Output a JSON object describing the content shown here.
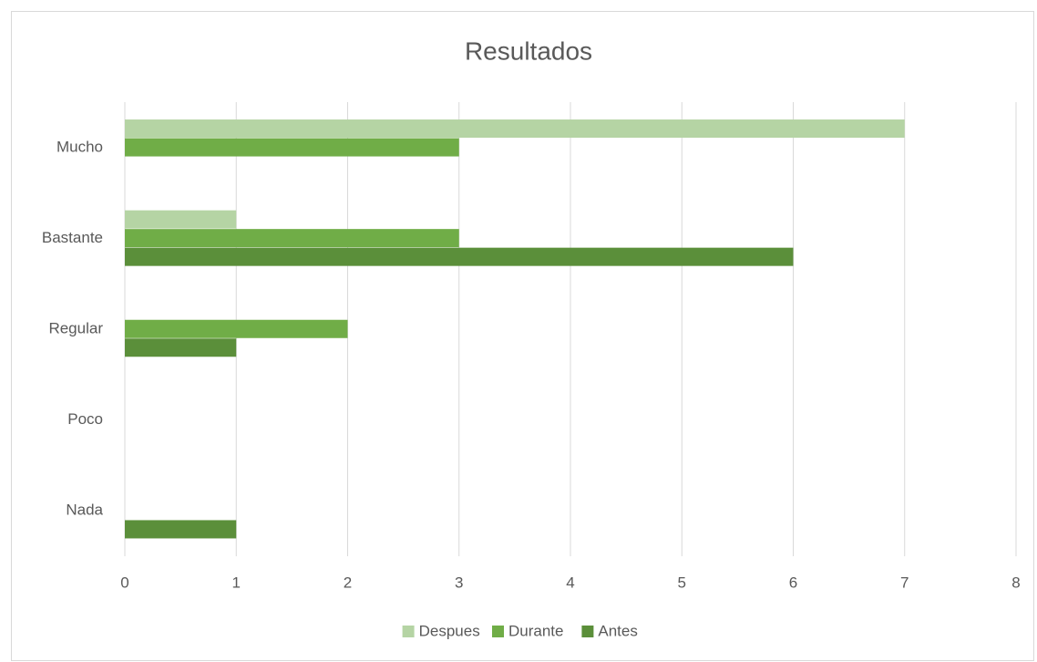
{
  "chart_data": {
    "type": "hbar",
    "title": "Resultados",
    "categories": [
      "Mucho",
      "Bastante",
      "Regular",
      "Poco",
      "Nada"
    ],
    "series": [
      {
        "name": "Despues",
        "color": "#b5d4a4",
        "values": [
          7,
          1,
          0,
          0,
          0
        ]
      },
      {
        "name": "Durante",
        "color": "#70ad47",
        "values": [
          3,
          3,
          2,
          0,
          0
        ]
      },
      {
        "name": "Antes",
        "color": "#5b8f3a",
        "values": [
          0,
          6,
          1,
          0,
          1
        ]
      }
    ],
    "xlim": [
      0,
      8
    ],
    "xticks": [
      0,
      1,
      2,
      3,
      4,
      5,
      6,
      7,
      8
    ],
    "grid": true,
    "legend": "bottom"
  }
}
